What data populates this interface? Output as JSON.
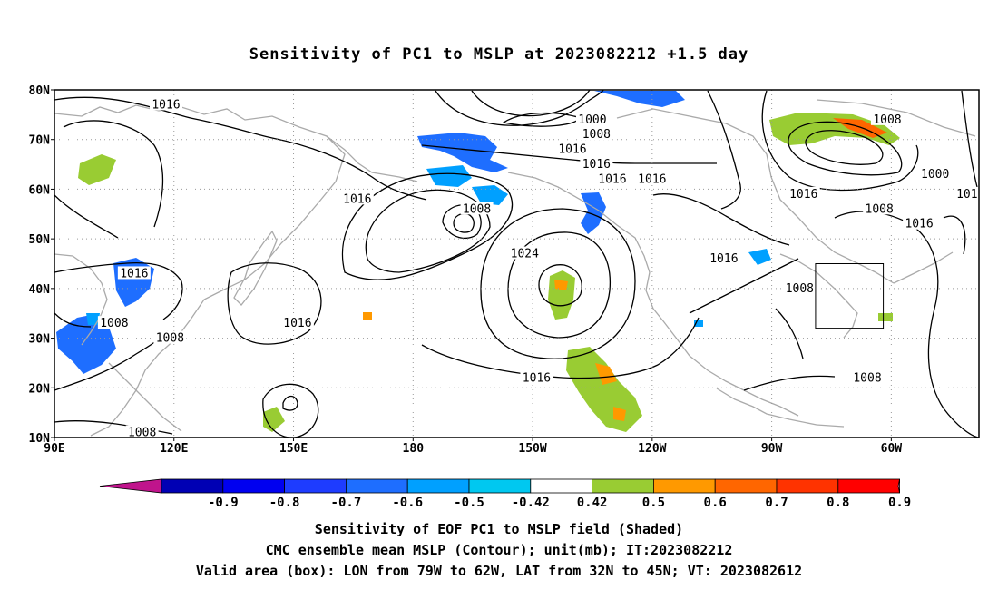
{
  "title": "Sensitivity of PC1 to MSLP at 2023082212 +1.5 day",
  "map": {
    "lat_labels": [
      "80N",
      "70N",
      "60N",
      "50N",
      "40N",
      "30N",
      "20N",
      "10N"
    ],
    "lon_labels": [
      "90E",
      "120E",
      "150E",
      "180",
      "150W",
      "120W",
      "90W",
      "60W"
    ],
    "lon_range": [
      90,
      322
    ],
    "lat_range": [
      10,
      80
    ],
    "grid": "dotted",
    "coastline_color": "#aaaaaa",
    "contour_color": "#000000",
    "contour_labels": [
      {
        "text": "1016",
        "lon": 118,
        "lat": 77
      },
      {
        "text": "1000",
        "lon": 225,
        "lat": 74
      },
      {
        "text": "1008",
        "lon": 226,
        "lat": 71
      },
      {
        "text": "1016",
        "lon": 220,
        "lat": 68
      },
      {
        "text": "1016",
        "lon": 226,
        "lat": 65
      },
      {
        "text": "1016",
        "lon": 230,
        "lat": 62
      },
      {
        "text": "1016",
        "lon": 240,
        "lat": 62
      },
      {
        "text": "1016",
        "lon": 166,
        "lat": 58
      },
      {
        "text": "1008",
        "lon": 196,
        "lat": 56
      },
      {
        "text": "1024",
        "lon": 208,
        "lat": 47
      },
      {
        "text": "1016",
        "lon": 258,
        "lat": 46
      },
      {
        "text": "1016",
        "lon": 278,
        "lat": 59
      },
      {
        "text": "1008",
        "lon": 299,
        "lat": 74
      },
      {
        "text": "1000",
        "lon": 311,
        "lat": 63
      },
      {
        "text": "1008",
        "lon": 297,
        "lat": 56
      },
      {
        "text": "1016",
        "lon": 307,
        "lat": 53
      },
      {
        "text": "101",
        "lon": 319,
        "lat": 59
      },
      {
        "text": "1008",
        "lon": 277,
        "lat": 40
      },
      {
        "text": "1016",
        "lon": 110,
        "lat": 43
      },
      {
        "text": "1008",
        "lon": 105,
        "lat": 33
      },
      {
        "text": "1008",
        "lon": 119,
        "lat": 30
      },
      {
        "text": "1016",
        "lon": 151,
        "lat": 33
      },
      {
        "text": "1016",
        "lon": 211,
        "lat": 22
      },
      {
        "text": "1008",
        "lon": 294,
        "lat": 22
      },
      {
        "text": "1008",
        "lon": 112,
        "lat": 11
      }
    ],
    "valid_box": {
      "lon": [
        281,
        298
      ],
      "lat": [
        32,
        45
      ]
    }
  },
  "colorbar": {
    "labels": [
      "-0.9",
      "-0.8",
      "-0.7",
      "-0.6",
      "-0.5",
      "-0.42",
      "0.42",
      "0.5",
      "0.6",
      "0.7",
      "0.8",
      "0.9"
    ],
    "colors": {
      "below": "#c0148c",
      "bins": [
        "#0000b4",
        "#0000f0",
        "#1e3cff",
        "#1e6eff",
        "#00a0ff",
        "#00c8f0",
        "#ffffff",
        "#99cc33",
        "#ff9900",
        "#ff6600",
        "#ff3300",
        "#ff0000"
      ],
      "above": "#ff99cc"
    }
  },
  "caption": {
    "line1": "Sensitivity of EOF PC1 to MSLP field (Shaded)",
    "line2": "CMC ensemble mean MSLP (Contour); unit(mb); IT:2023082212",
    "line3": "Valid area (box): LON from 79W to 62W, LAT from 32N to 45N; VT: 2023082612"
  }
}
